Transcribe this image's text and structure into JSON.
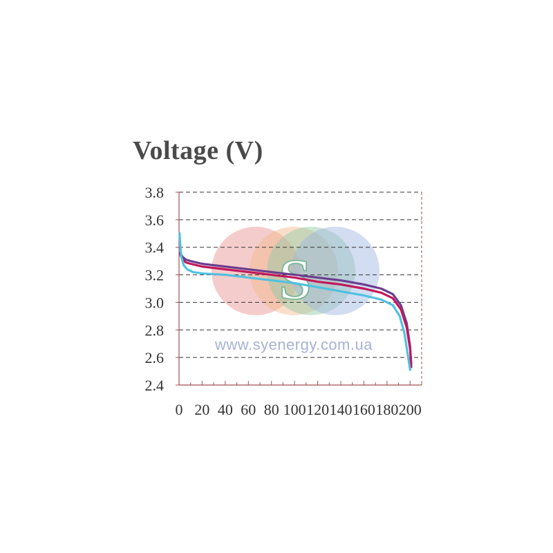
{
  "chart_data": {
    "type": "line",
    "title": "Voltage (V)",
    "xlabel": "",
    "ylabel": "",
    "xlim": [
      0,
      210
    ],
    "ylim": [
      2.4,
      3.8
    ],
    "xticks": [
      0,
      20,
      40,
      60,
      80,
      100,
      120,
      140,
      160,
      180,
      200
    ],
    "yticks": [
      2.4,
      2.6,
      2.8,
      3.0,
      3.2,
      3.4,
      3.6,
      3.8
    ],
    "ytick_labels": [
      "2.4",
      "2.6",
      "2.8",
      "3.0",
      "3.2",
      "3.4",
      "3.6",
      "3.8"
    ],
    "xtick_labels": [
      "0",
      "20",
      "40",
      "60",
      "80",
      "100",
      "120",
      "140",
      "160",
      "180",
      "200"
    ],
    "grid": "horizontal dashed",
    "series": [
      {
        "color": "#6a3d8f",
        "x": [
          1,
          3,
          6,
          10,
          20,
          40,
          60,
          80,
          100,
          120,
          140,
          160,
          175,
          185,
          192,
          197,
          200,
          201
        ],
        "y": [
          3.36,
          3.33,
          3.31,
          3.3,
          3.28,
          3.26,
          3.24,
          3.22,
          3.2,
          3.18,
          3.16,
          3.13,
          3.1,
          3.06,
          2.98,
          2.85,
          2.68,
          2.55
        ]
      },
      {
        "color": "#c2185b",
        "x": [
          1,
          3,
          6,
          10,
          20,
          40,
          60,
          80,
          100,
          120,
          140,
          160,
          175,
          185,
          192,
          197,
          200,
          201
        ],
        "y": [
          3.35,
          3.31,
          3.29,
          3.28,
          3.26,
          3.24,
          3.22,
          3.2,
          3.18,
          3.15,
          3.13,
          3.1,
          3.07,
          3.03,
          2.95,
          2.82,
          2.66,
          2.53
        ]
      },
      {
        "color": "#4fc1e0",
        "x": [
          0.5,
          1,
          2,
          4,
          7,
          12,
          20,
          40,
          60,
          80,
          100,
          120,
          140,
          160,
          175,
          185,
          191,
          195,
          198,
          200
        ],
        "y": [
          3.5,
          3.42,
          3.33,
          3.27,
          3.24,
          3.22,
          3.21,
          3.2,
          3.18,
          3.16,
          3.14,
          3.11,
          3.08,
          3.05,
          3.02,
          2.98,
          2.9,
          2.78,
          2.62,
          2.51
        ]
      }
    ]
  },
  "watermark": {
    "url": "www.syenergy.com.ua",
    "logo_letter": "S",
    "circle_colors": [
      "#e88f8f",
      "#f2b98a",
      "#8fc9a4",
      "#9db4e0"
    ]
  },
  "colors": {
    "axis": "#a05050",
    "grid": "#333333"
  }
}
